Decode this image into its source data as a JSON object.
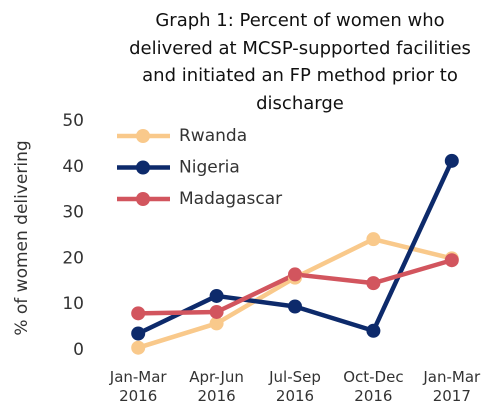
{
  "chart_data": {
    "type": "line",
    "title": "Graph 1: Percent of women who delivered at MCSP-supported facilities and initiated an FP method prior to discharge",
    "y_label": "% of women delivering",
    "categories": [
      "Jan-Mar 2016",
      "Apr-Jun 2016",
      "Jul-Sep 2016",
      "Oct-Dec 2016",
      "Jan-Mar 2017"
    ],
    "series": [
      {
        "name": "Rwanda",
        "color": "#f9c98b",
        "values": [
          0.5,
          5.8,
          15.8,
          24.2,
          20.0
        ]
      },
      {
        "name": "Nigeria",
        "color": "#0d2a6b",
        "values": [
          3.6,
          11.8,
          9.5,
          4.2,
          41.3
        ]
      },
      {
        "name": "Madagascar",
        "color": "#d2555e",
        "values": [
          8.0,
          8.3,
          16.5,
          14.6,
          19.6
        ]
      }
    ],
    "ylim": [
      0,
      50
    ],
    "yticks": [
      0,
      10,
      20,
      30,
      40,
      50
    ],
    "grid": false,
    "legend": "top-left"
  }
}
